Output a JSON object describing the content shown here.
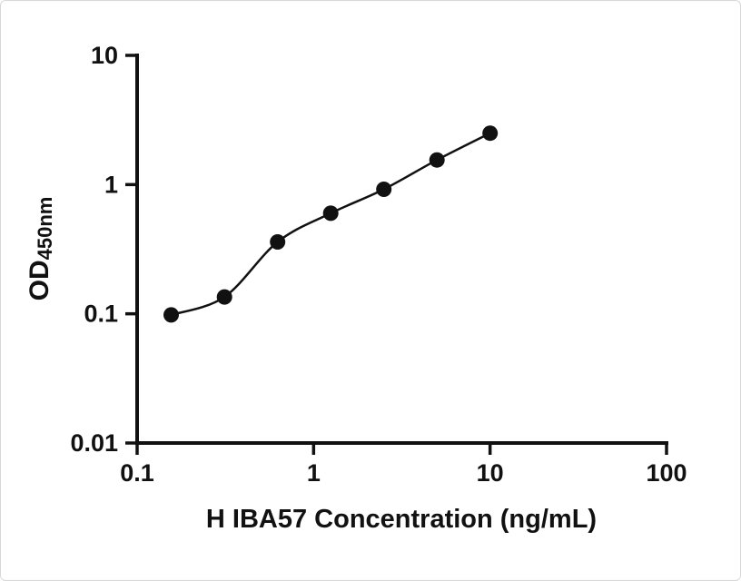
{
  "chart_data": {
    "type": "scatter",
    "title": "",
    "xlabel": "H IBA57 Concentration (ng/mL)",
    "ylabel_main": "OD",
    "ylabel_sub": "450nm",
    "xscale": "log",
    "yscale": "log",
    "xlim": [
      0.1,
      100
    ],
    "ylim": [
      0.01,
      10
    ],
    "grid": false,
    "legend": null,
    "x": [
      0.156,
      0.3125,
      0.625,
      1.25,
      2.5,
      5,
      10
    ],
    "y": [
      0.098,
      0.135,
      0.36,
      0.6,
      0.92,
      1.55,
      2.5
    ],
    "x_ticks": [
      "0.1",
      "1",
      "10",
      "100"
    ],
    "x_tick_values": [
      0.1,
      1,
      10,
      100
    ],
    "y_ticks": [
      "10",
      "1",
      "0.1",
      "0.01"
    ],
    "y_tick_values": [
      10,
      1,
      0.1,
      0.01
    ],
    "marker_color": "#111111",
    "line_color": "#111111",
    "axis_color": "#111111"
  }
}
